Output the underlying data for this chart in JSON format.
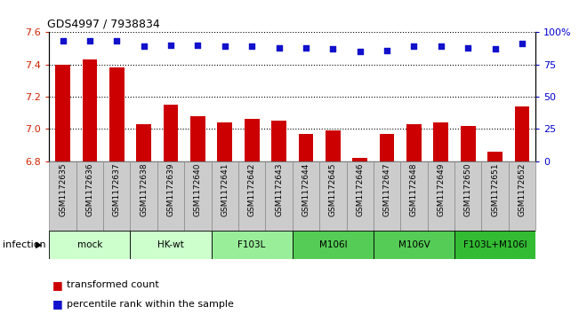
{
  "title": "GDS4997 / 7938834",
  "samples": [
    "GSM1172635",
    "GSM1172636",
    "GSM1172637",
    "GSM1172638",
    "GSM1172639",
    "GSM1172640",
    "GSM1172641",
    "GSM1172642",
    "GSM1172643",
    "GSM1172644",
    "GSM1172645",
    "GSM1172646",
    "GSM1172647",
    "GSM1172648",
    "GSM1172649",
    "GSM1172650",
    "GSM1172651",
    "GSM1172652"
  ],
  "bar_values": [
    7.4,
    7.43,
    7.38,
    7.03,
    7.15,
    7.08,
    7.04,
    7.06,
    7.05,
    6.97,
    6.99,
    6.82,
    6.97,
    7.03,
    7.04,
    7.02,
    6.86,
    7.14
  ],
  "dot_values": [
    93,
    93,
    93,
    89,
    90,
    90,
    89,
    89,
    88,
    88,
    87,
    85,
    86,
    89,
    89,
    88,
    87,
    91
  ],
  "bar_color": "#cc0000",
  "dot_color": "#1111cc",
  "ylim_left": [
    6.8,
    7.6
  ],
  "ylim_right": [
    0,
    100
  ],
  "yticks_left": [
    6.8,
    7.0,
    7.2,
    7.4,
    7.6
  ],
  "yticks_right": [
    0,
    25,
    50,
    75,
    100
  ],
  "groups": [
    {
      "label": "mock",
      "start": 0,
      "end": 2,
      "color": "#ccffcc"
    },
    {
      "label": "HK-wt",
      "start": 3,
      "end": 5,
      "color": "#ccffcc"
    },
    {
      "label": "F103L",
      "start": 6,
      "end": 8,
      "color": "#99ee99"
    },
    {
      "label": "M106I",
      "start": 9,
      "end": 11,
      "color": "#55cc55"
    },
    {
      "label": "M106V",
      "start": 12,
      "end": 14,
      "color": "#55cc55"
    },
    {
      "label": "F103L+M106I",
      "start": 15,
      "end": 17,
      "color": "#33bb33"
    }
  ],
  "xlabel_infection": "infection",
  "legend_bar_label": "transformed count",
  "legend_dot_label": "percentile rank within the sample",
  "bar_width": 0.55,
  "tick_label_color_left": "#cc2200",
  "tick_label_color_right": "#0000cc",
  "sample_box_color": "#cccccc",
  "sample_box_edge": "#888888"
}
